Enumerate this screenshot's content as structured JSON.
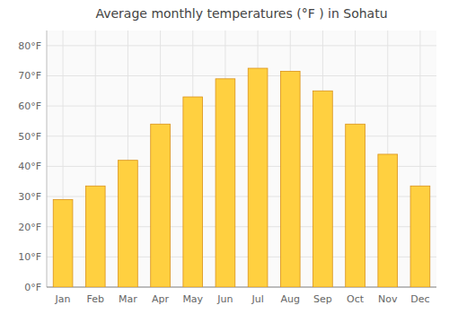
{
  "chart_data": {
    "type": "bar",
    "title": "Average monthly temperatures (°F ) in Sohatu",
    "categories": [
      "Jan",
      "Feb",
      "Mar",
      "Apr",
      "May",
      "Jun",
      "Jul",
      "Aug",
      "Sep",
      "Oct",
      "Nov",
      "Dec"
    ],
    "values": [
      29,
      33.5,
      42,
      54,
      63,
      69,
      72.5,
      71.5,
      65,
      54,
      44,
      33.5
    ],
    "color": "#FFD040",
    "ylim": [
      0,
      85
    ],
    "yticks": [
      {
        "value": 0,
        "label": "0°F"
      },
      {
        "value": 10,
        "label": "10°F"
      },
      {
        "value": 20,
        "label": "20°F"
      },
      {
        "value": 30,
        "label": "30°F"
      },
      {
        "value": 40,
        "label": "40°F"
      },
      {
        "value": 50,
        "label": "50°F"
      },
      {
        "value": 60,
        "label": "60°F"
      },
      {
        "value": 70,
        "label": "70°F"
      },
      {
        "value": 80,
        "label": "80°F"
      }
    ],
    "grid": true
  }
}
